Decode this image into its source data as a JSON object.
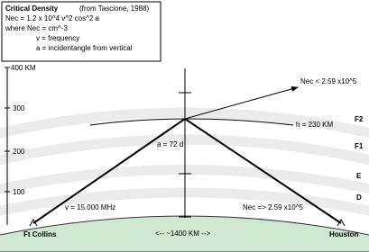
{
  "legend_box": {
    "title": "Critical Density",
    "source": "(from Tascione, 1988)",
    "lines": [
      "Nec = 1.2 x 10^4 v^2 cos^2 a",
      "where Nec = cm^-3",
      "v = frequency",
      "a = incidentangle from vertical"
    ]
  },
  "altitude_axis": {
    "labels": [
      "400  KM",
      "300",
      "200",
      "100"
    ]
  },
  "layers": [
    "F2",
    "F1",
    "E",
    "D"
  ],
  "annotations": {
    "escape": "Nec < 2.59 x10^5",
    "height": "h = 230 KM",
    "angle": "a = 72 d",
    "frequency": "v = 15.000 MHz",
    "reflect": "Nec => 2.59 x10^5",
    "distance": "<-- ~1400 KM -->"
  },
  "stations": {
    "start": "Ft Collins",
    "end": "Houston"
  }
}
